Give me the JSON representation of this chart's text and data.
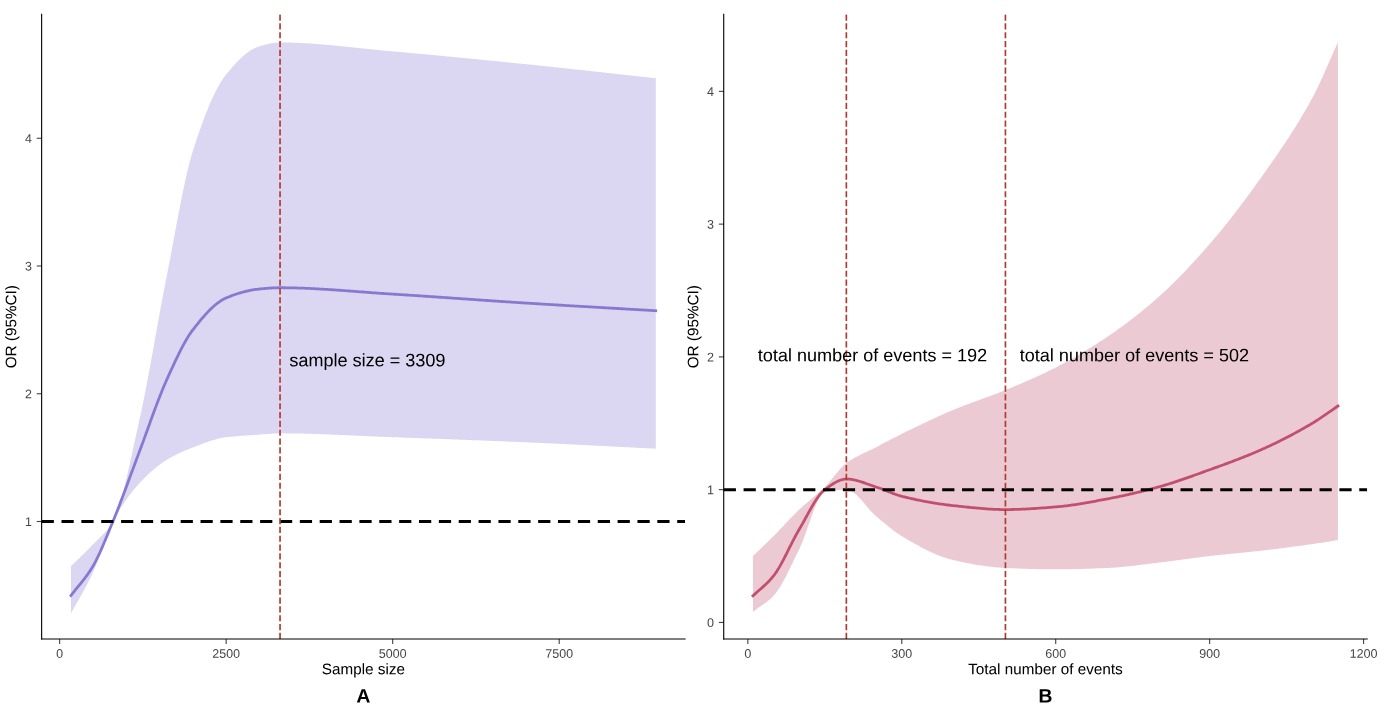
{
  "chart_data": [
    {
      "type": "line",
      "title": "A",
      "xlabel": "Sample size",
      "ylabel": "OR (95%CI)",
      "x": [
        170,
        500,
        800,
        1200,
        1600,
        2000,
        2500,
        3000,
        3309,
        5000,
        7000,
        8950
      ],
      "series": [
        {
          "color": "#8878d0",
          "values": [
            0.42,
            0.65,
            1.0,
            1.55,
            2.1,
            2.5,
            2.75,
            2.82,
            2.83,
            2.78,
            2.71,
            2.65
          ],
          "lower": [
            0.28,
            0.6,
            1.0,
            1.3,
            1.48,
            1.58,
            1.66,
            1.68,
            1.69,
            1.66,
            1.62,
            1.57
          ],
          "upper": [
            0.65,
            0.82,
            1.0,
            1.8,
            2.9,
            3.9,
            4.5,
            4.72,
            4.75,
            4.68,
            4.58,
            4.47
          ]
        }
      ],
      "xlim": [
        -270,
        9390
      ],
      "xticks": [
        0,
        2500,
        5000,
        7500
      ],
      "ylim": [
        0.08,
        4.97
      ],
      "yticks": [
        1,
        2,
        3,
        4
      ],
      "ref_lines": [
        {
          "axis": "y",
          "value": 1,
          "color": "#000000",
          "line_style": "dashed"
        },
        {
          "axis": "x",
          "value": 3309,
          "color": "#b03a2e",
          "line_style": "dashed"
        }
      ],
      "annotations": [
        "sample size = 3309"
      ],
      "grid": false,
      "legend": false,
      "marker": "none",
      "line_style": "solid"
    },
    {
      "type": "line",
      "title": "B",
      "xlabel": "Total number of events",
      "ylabel": "OR (95%CI)",
      "x": [
        10,
        50,
        100,
        150,
        192,
        250,
        300,
        400,
        502,
        600,
        700,
        800,
        900,
        1000,
        1100,
        1150
      ],
      "series": [
        {
          "color": "#c0506e",
          "values": [
            0.2,
            0.35,
            0.7,
            1.0,
            1.08,
            1.02,
            0.95,
            0.88,
            0.85,
            0.87,
            0.93,
            1.02,
            1.15,
            1.3,
            1.5,
            1.63
          ],
          "lower": [
            0.08,
            0.2,
            0.55,
            0.98,
            1.0,
            0.8,
            0.65,
            0.47,
            0.41,
            0.4,
            0.41,
            0.45,
            0.5,
            0.54,
            0.59,
            0.62
          ],
          "upper": [
            0.5,
            0.65,
            0.85,
            1.02,
            1.2,
            1.32,
            1.42,
            1.6,
            1.75,
            1.92,
            2.15,
            2.45,
            2.85,
            3.35,
            3.95,
            4.37
          ]
        }
      ],
      "xlim": [
        -47,
        1207
      ],
      "xticks": [
        0,
        300,
        600,
        900,
        1200
      ],
      "ylim": [
        -0.125,
        4.58
      ],
      "yticks": [
        0,
        1,
        2,
        3,
        4
      ],
      "ref_lines": [
        {
          "axis": "y",
          "value": 1,
          "color": "#000000",
          "line_style": "dashed"
        },
        {
          "axis": "x",
          "value": 192,
          "color": "#b03a2e",
          "line_style": "dashed"
        },
        {
          "axis": "x",
          "value": 502,
          "color": "#b03a2e",
          "line_style": "dashed"
        }
      ],
      "annotations": [
        "total number of events = 192",
        "total number of events = 502"
      ],
      "grid": false,
      "legend": false,
      "marker": "none",
      "line_style": "solid"
    }
  ]
}
